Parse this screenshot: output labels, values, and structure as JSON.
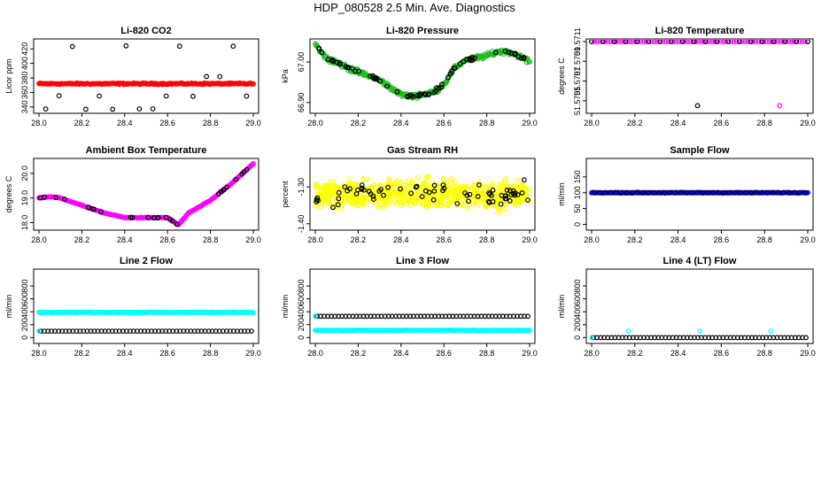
{
  "page": {
    "title": "HDP_080528  2.5 Min. Ave. Diagnostics"
  },
  "colors": {
    "red": "#ff0000",
    "green": "#22bb22",
    "magenta": "#ff00ff",
    "yellow": "#ffff00",
    "blue": "#0000ff",
    "cyan": "#00ffff",
    "black": "#000000"
  },
  "chart_data": [
    {
      "type": "scatter",
      "title": "Li-820 CO2",
      "ylabel": "Licor ppm",
      "xlim": [
        28.0,
        29.0
      ],
      "ylim": [
        335,
        430
      ],
      "xticks": [
        "28.0",
        "28.2",
        "28.4",
        "28.6",
        "28.8",
        "29.0"
      ],
      "yticks": [
        {
          "v": 340,
          "label": "340"
        },
        {
          "v": 360,
          "label": "360"
        },
        {
          "v": 380,
          "label": "380"
        },
        {
          "v": 400,
          "label": "400"
        },
        {
          "v": 420,
          "label": "420"
        }
      ],
      "series": [
        {
          "name": "co2-avg",
          "color": "red",
          "style": "band",
          "level": 372,
          "noise": 1.5,
          "count": 220
        },
        {
          "name": "co2-hi",
          "color": "black",
          "style": "open",
          "levels": [
            424,
            382,
            355,
            337
          ],
          "count": 16
        }
      ]
    },
    {
      "type": "scatter",
      "title": "Li-820 Pressure",
      "ylabel": "kPa",
      "xlim": [
        28.0,
        29.0
      ],
      "ylim": [
        66.88,
        67.05
      ],
      "xticks": [
        "28.0",
        "28.2",
        "28.4",
        "28.6",
        "28.8",
        "29.0"
      ],
      "yticks": [
        {
          "v": 66.9,
          "label": "66.90"
        },
        {
          "v": 67.0,
          "label": "67.00"
        }
      ],
      "series": [
        {
          "name": "pressure",
          "color": "green",
          "style": "curve",
          "knots": [
            [
              28.0,
              67.045
            ],
            [
              28.05,
              67.01
            ],
            [
              28.1,
              67.0
            ],
            [
              28.15,
              66.985
            ],
            [
              28.2,
              66.975
            ],
            [
              28.3,
              66.955
            ],
            [
              28.4,
              66.92
            ],
            [
              28.45,
              66.915
            ],
            [
              28.5,
              66.92
            ],
            [
              28.55,
              66.925
            ],
            [
              28.6,
              66.945
            ],
            [
              28.65,
              66.985
            ],
            [
              28.7,
              67.005
            ],
            [
              28.8,
              67.015
            ],
            [
              28.85,
              67.025
            ],
            [
              28.9,
              67.025
            ],
            [
              28.95,
              67.015
            ],
            [
              29.0,
              67.0
            ]
          ],
          "noise": 0.008,
          "count": 300
        },
        {
          "name": "pressure-ref",
          "color": "black",
          "style": "open-curve",
          "noise": 0.006,
          "count": 70
        }
      ]
    },
    {
      "type": "scatter",
      "title": "Li-820 Temperature",
      "ylabel": "degrees C",
      "xlim": [
        28.0,
        29.0
      ],
      "ylim": [
        51.5704,
        51.5711
      ],
      "xticks": [
        "28.0",
        "28.2",
        "28.4",
        "28.6",
        "28.8",
        "29.0"
      ],
      "yticks": [
        {
          "v": 51.5705,
          "label": "51.5705"
        },
        {
          "v": 51.5707,
          "label": "51.5707"
        },
        {
          "v": 51.5709,
          "label": "51.5709"
        },
        {
          "v": 51.5711,
          "label": "51.5711"
        }
      ],
      "series": [
        {
          "name": "temp",
          "color": "magenta",
          "style": "flat",
          "level": 51.5711,
          "count": 80
        },
        {
          "name": "temp-ref",
          "color": "black",
          "style": "flat",
          "level": 51.5711,
          "count": 20
        },
        {
          "name": "temp-outlier-1",
          "color": "black",
          "style": "single",
          "point": [
            28.49,
            51.57045
          ]
        },
        {
          "name": "temp-outlier-2",
          "color": "magenta",
          "style": "single",
          "point": [
            28.87,
            51.57045
          ]
        }
      ]
    },
    {
      "type": "scatter",
      "title": "Ambient Box Temperature",
      "ylabel": "degrees C",
      "xlim": [
        28.0,
        29.0
      ],
      "ylim": [
        17.8,
        20.5
      ],
      "xticks": [
        "28.0",
        "28.2",
        "28.4",
        "28.6",
        "28.8",
        "29.0"
      ],
      "yticks": [
        {
          "v": 18.0,
          "label": "18.0"
        },
        {
          "v": 19.0,
          "label": "19.0"
        },
        {
          "v": 20.0,
          "label": "20.0"
        }
      ],
      "series": [
        {
          "name": "box-temp",
          "color": "magenta",
          "style": "curve",
          "knots": [
            [
              28.0,
              19.0
            ],
            [
              28.05,
              19.05
            ],
            [
              28.1,
              19.0
            ],
            [
              28.2,
              18.7
            ],
            [
              28.3,
              18.4
            ],
            [
              28.4,
              18.2
            ],
            [
              28.5,
              18.2
            ],
            [
              28.6,
              18.2
            ],
            [
              28.65,
              17.9
            ],
            [
              28.7,
              18.4
            ],
            [
              28.8,
              18.9
            ],
            [
              28.9,
              19.6
            ],
            [
              29.0,
              20.4
            ]
          ],
          "noise": 0.02,
          "count": 260
        },
        {
          "name": "box-temp-ref",
          "color": "black",
          "style": "open-curve",
          "noise": 0.02,
          "count": 30
        }
      ]
    },
    {
      "type": "scatter",
      "title": "Gas Stream RH",
      "ylabel": "percent",
      "xlim": [
        28.0,
        29.0
      ],
      "ylim": [
        -1.41,
        -1.23
      ],
      "xticks": [
        "28.0",
        "28.2",
        "28.4",
        "28.6",
        "28.8",
        "29.0"
      ],
      "yticks": [
        {
          "v": -1.4,
          "label": "-1.40"
        },
        {
          "v": -1.3,
          "label": "-1.30"
        }
      ],
      "series": [
        {
          "name": "rh",
          "color": "yellow",
          "style": "scatter",
          "level": -1.32,
          "noise": 0.035,
          "count": 700
        },
        {
          "name": "rh-ref",
          "color": "black",
          "style": "scatter",
          "level": -1.32,
          "noise": 0.03,
          "count": 70
        }
      ]
    },
    {
      "type": "scatter",
      "title": "Sample Flow",
      "ylabel": "ml/min",
      "xlim": [
        28.0,
        29.0
      ],
      "ylim": [
        -10,
        200
      ],
      "xticks": [
        "28.0",
        "28.2",
        "28.4",
        "28.6",
        "28.8",
        "29.0"
      ],
      "yticks": [
        {
          "v": 0,
          "label": "0"
        },
        {
          "v": 50,
          "label": "50"
        },
        {
          "v": 100,
          "label": "100"
        },
        {
          "v": 150,
          "label": "150"
        }
      ],
      "series": [
        {
          "name": "sample-flow",
          "color": "blue",
          "style": "band",
          "level": 100,
          "noise": 1.5,
          "count": 220
        },
        {
          "name": "sample-flow-ref",
          "color": "black",
          "style": "open",
          "levels": [
            100
          ],
          "count": 40
        }
      ]
    },
    {
      "type": "scatter",
      "title": "Line 2 Flow",
      "ylabel": "ml/min",
      "xlim": [
        28.0,
        29.0
      ],
      "ylim": [
        -50,
        1020
      ],
      "xticks": [
        "28.0",
        "28.2",
        "28.4",
        "28.6",
        "28.8",
        "29.0"
      ],
      "yticks": [
        {
          "v": 0,
          "label": "0"
        },
        {
          "v": 200,
          "label": "200"
        },
        {
          "v": 400,
          "label": "400"
        },
        {
          "v": 600,
          "label": "600"
        },
        {
          "v": 800,
          "label": "800"
        }
      ],
      "series": [
        {
          "name": "line2-flow",
          "color": "cyan",
          "style": "band",
          "level": 390,
          "noise": 8,
          "count": 220
        },
        {
          "name": "line2-ref",
          "color": "black",
          "style": "open",
          "levels": [
            100
          ],
          "count": 60
        },
        {
          "name": "line2-start",
          "color": "cyan",
          "style": "single",
          "point": [
            28.0,
            100
          ]
        }
      ]
    },
    {
      "type": "scatter",
      "title": "Line 3 Flow",
      "ylabel": "ml/min",
      "xlim": [
        28.0,
        29.0
      ],
      "ylim": [
        -50,
        1020
      ],
      "xticks": [
        "28.0",
        "28.2",
        "28.4",
        "28.6",
        "28.8",
        "29.0"
      ],
      "yticks": [
        {
          "v": 0,
          "label": "0"
        },
        {
          "v": 200,
          "label": "200"
        },
        {
          "v": 400,
          "label": "400"
        },
        {
          "v": 600,
          "label": "600"
        },
        {
          "v": 800,
          "label": "800"
        }
      ],
      "series": [
        {
          "name": "line3-flow",
          "color": "cyan",
          "style": "band",
          "level": 110,
          "noise": 8,
          "count": 220
        },
        {
          "name": "line3-ref",
          "color": "black",
          "style": "open",
          "levels": [
            330
          ],
          "count": 60
        },
        {
          "name": "line3-start",
          "color": "cyan",
          "style": "single",
          "point": [
            28.0,
            330
          ]
        }
      ]
    },
    {
      "type": "scatter",
      "title": "Line 4 (LT) Flow",
      "ylabel": "ml/min",
      "xlim": [
        28.0,
        29.0
      ],
      "ylim": [
        -50,
        1020
      ],
      "xticks": [
        "28.0",
        "28.2",
        "28.4",
        "28.6",
        "28.8",
        "29.0"
      ],
      "yticks": [
        {
          "v": 0,
          "label": "0"
        },
        {
          "v": 200,
          "label": "200"
        },
        {
          "v": 400,
          "label": "400"
        },
        {
          "v": 600,
          "label": "600"
        },
        {
          "v": 800,
          "label": "800"
        }
      ],
      "series": [
        {
          "name": "line4-ref",
          "color": "black",
          "style": "open",
          "levels": [
            0
          ],
          "count": 60
        },
        {
          "name": "line4-start",
          "color": "cyan",
          "style": "single",
          "point": [
            28.0,
            0
          ]
        },
        {
          "name": "line4-spike-1",
          "color": "cyan",
          "style": "single",
          "point": [
            28.17,
            100
          ]
        },
        {
          "name": "line4-spike-2",
          "color": "cyan",
          "style": "single",
          "point": [
            28.5,
            100
          ]
        },
        {
          "name": "line4-spike-3",
          "color": "cyan",
          "style": "single",
          "point": [
            28.83,
            100
          ]
        }
      ]
    }
  ]
}
